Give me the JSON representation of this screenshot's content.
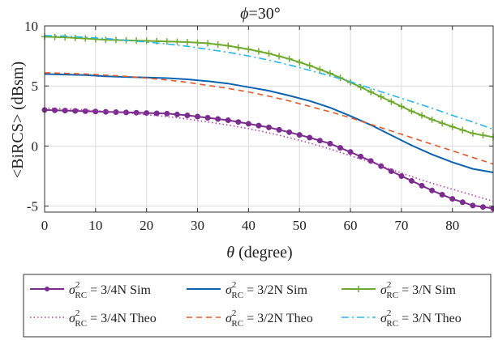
{
  "chart_data": {
    "type": "line",
    "title": "ϕ=30°",
    "title_symbol": "ϕ",
    "title_value": "=30°",
    "xlabel": "θ (degree)",
    "xlabel_symbol": "θ",
    "xlabel_rest": " (degree)",
    "ylabel": "<BiRCS> (dBsm)",
    "xlim": [
      0,
      88
    ],
    "ylim": [
      -5.5,
      10
    ],
    "xticks": [
      0,
      10,
      20,
      30,
      40,
      50,
      60,
      70,
      80
    ],
    "yticks": [
      -5,
      0,
      5,
      10
    ],
    "grid": true,
    "legend_position": "bottom",
    "x": [
      0,
      4,
      8,
      12,
      16,
      20,
      24,
      28,
      32,
      36,
      40,
      44,
      48,
      52,
      56,
      60,
      64,
      68,
      72,
      76,
      80,
      84,
      88
    ],
    "series": [
      {
        "name": "σ²RC = 3/4N Sim",
        "label_sigma": "σ",
        "label_sup": "2",
        "label_sub": "RC",
        "label_rest": " = 3/4N Sim",
        "color": "#7B2D8E",
        "style": "solid",
        "marker": "circle",
        "values": [
          3.0,
          2.95,
          2.9,
          2.85,
          2.8,
          2.75,
          2.7,
          2.55,
          2.35,
          2.15,
          1.85,
          1.55,
          1.15,
          0.7,
          0.2,
          -0.5,
          -1.25,
          -2.1,
          -2.9,
          -3.7,
          -4.4,
          -4.95,
          -5.2
        ]
      },
      {
        "name": "σ²RC = 3/2N Sim",
        "label_sigma": "σ",
        "label_sup": "2",
        "label_sub": "RC",
        "label_rest": " = 3/2N Sim",
        "color": "#0B63B0",
        "style": "solid",
        "marker": "none",
        "values": [
          6.0,
          5.95,
          5.9,
          5.8,
          5.75,
          5.7,
          5.65,
          5.55,
          5.4,
          5.2,
          4.9,
          4.6,
          4.2,
          3.75,
          3.2,
          2.5,
          1.75,
          0.9,
          0.05,
          -0.7,
          -1.35,
          -1.9,
          -2.2
        ]
      },
      {
        "name": "σ²RC = 3/N Sim",
        "label_sigma": "σ",
        "label_sup": "2",
        "label_sub": "RC",
        "label_rest": " = 3/N Sim",
        "color": "#6FAA2E",
        "style": "solid",
        "marker": "plus",
        "values": [
          9.1,
          9.05,
          8.95,
          8.85,
          8.8,
          8.75,
          8.7,
          8.65,
          8.55,
          8.35,
          8.05,
          7.7,
          7.25,
          6.7,
          6.05,
          5.3,
          4.5,
          3.7,
          2.9,
          2.2,
          1.6,
          1.05,
          0.75
        ]
      },
      {
        "name": "σ²RC = 3/4N Theo",
        "label_sigma": "σ",
        "label_sup": "2",
        "label_sub": "RC",
        "label_rest": " = 3/4N Theo",
        "color": "#B53BB5",
        "style": "dotted",
        "marker": "none",
        "values": [
          3.15,
          3.1,
          3.0,
          2.9,
          2.75,
          2.6,
          2.45,
          2.25,
          2.0,
          1.75,
          1.45,
          1.1,
          0.7,
          0.25,
          -0.25,
          -0.8,
          -1.35,
          -1.95,
          -2.55,
          -3.1,
          -3.6,
          -4.1,
          -4.6
        ]
      },
      {
        "name": "σ²RC = 3/2N Theo",
        "label_sigma": "σ",
        "label_sup": "2",
        "label_sub": "RC",
        "label_rest": " = 3/2N Theo",
        "color": "#E25A2C",
        "style": "dashed",
        "marker": "none",
        "values": [
          6.1,
          6.05,
          6.0,
          5.9,
          5.8,
          5.65,
          5.5,
          5.3,
          5.05,
          4.8,
          4.5,
          4.15,
          3.75,
          3.3,
          2.85,
          2.35,
          1.8,
          1.25,
          0.7,
          0.15,
          -0.4,
          -0.95,
          -1.5
        ]
      },
      {
        "name": "σ²RC = 3/N Theo",
        "label_sigma": "σ",
        "label_sup": "2",
        "label_sub": "RC",
        "label_rest": " = 3/N Theo",
        "color": "#29B6E8",
        "style": "dashdot",
        "marker": "none",
        "values": [
          9.2,
          9.15,
          9.05,
          8.95,
          8.8,
          8.65,
          8.5,
          8.3,
          8.05,
          7.8,
          7.5,
          7.15,
          6.75,
          6.3,
          5.85,
          5.35,
          4.8,
          4.25,
          3.7,
          3.15,
          2.55,
          2.0,
          1.4
        ]
      }
    ]
  }
}
